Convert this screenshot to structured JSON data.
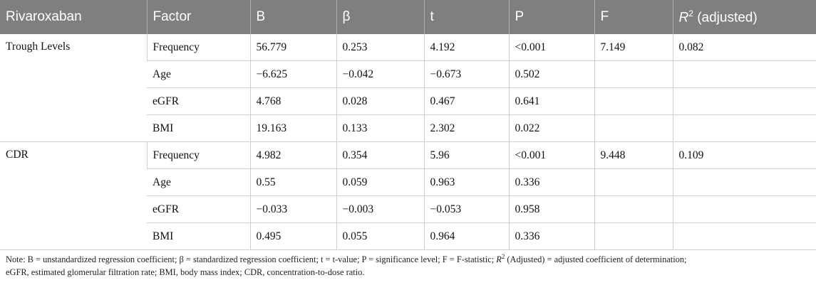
{
  "table": {
    "headers": [
      "Rivaroxaban",
      "Factor",
      "B",
      "β",
      "t",
      "P",
      "F",
      "(adjusted)"
    ],
    "r2_symbol": "R",
    "r2_sup": "2",
    "groups": [
      {
        "name": "Trough Levels",
        "F": "7.149",
        "r2": "0.082",
        "rows": [
          {
            "factor": "Frequency",
            "B": "56.779",
            "beta": "0.253",
            "t": "4.192",
            "P": "<0.001"
          },
          {
            "factor": "Age",
            "B": "−6.625",
            "beta": "−0.042",
            "t": "−0.673",
            "P": "0.502"
          },
          {
            "factor": "eGFR",
            "B": "4.768",
            "beta": "0.028",
            "t": "0.467",
            "P": "0.641"
          },
          {
            "factor": "BMI",
            "B": "19.163",
            "beta": "0.133",
            "t": "2.302",
            "P": "0.022"
          }
        ]
      },
      {
        "name": "CDR",
        "F": "9.448",
        "r2": "0.109",
        "rows": [
          {
            "factor": "Frequency",
            "B": "4.982",
            "beta": "0.354",
            "t": "5.96",
            "P": "<0.001"
          },
          {
            "factor": "Age",
            "B": "0.55",
            "beta": "0.059",
            "t": "0.963",
            "P": "0.336"
          },
          {
            "factor": "eGFR",
            "B": "−0.033",
            "beta": "−0.003",
            "t": "−0.053",
            "P": "0.958"
          },
          {
            "factor": "BMI",
            "B": "0.495",
            "beta": "0.055",
            "t": "0.964",
            "P": "0.336"
          }
        ]
      }
    ]
  },
  "note": {
    "part1": "Note: B = unstandardized regression coefficient; β = standardized regression coefficient; t = t-value; P = significance level; F = F-statistic; ",
    "r2_symbol": "R",
    "r2_sup": "2",
    "part2": " (Adjusted) = adjusted coefficient of determination;",
    "line2": "eGFR, estimated glomerular filtration rate; BMI, body mass index; CDR, concentration-to-dose ratio."
  }
}
